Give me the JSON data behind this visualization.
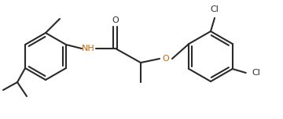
{
  "bg_color": "#ffffff",
  "line_color": "#2a2a2a",
  "label_color_black": "#2a2a2a",
  "label_color_orange": "#cc6600",
  "font_size": 7.5,
  "line_width": 1.5,
  "figsize": [
    3.6,
    1.52
  ],
  "dpi": 100,
  "xlim": [
    0,
    360
  ],
  "ylim": [
    0,
    152
  ]
}
